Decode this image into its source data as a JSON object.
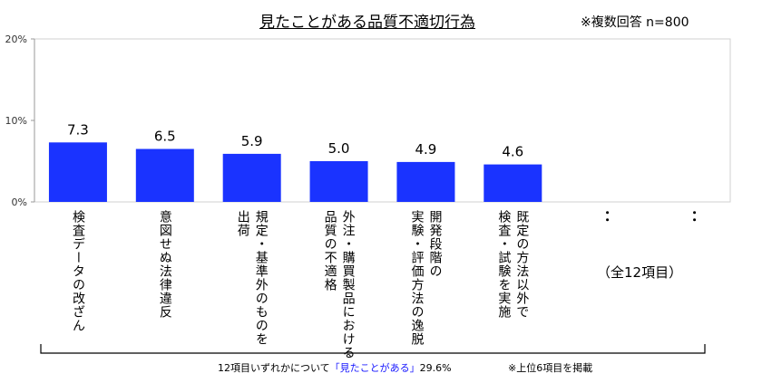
{
  "chart_data": {
    "type": "bar",
    "title": "見たことがある品質不適切行為",
    "note": "※複数回答 n=800",
    "categories": [
      "検査データの改ざん",
      "意図せぬ法律違反",
      "規定・基準外のものを\n出荷",
      "外注・購買製品における\n品質の不適格",
      "開発段階の\n実験・評価方法の逸脱",
      "既定の方法以外で\n検査・試験を実施"
    ],
    "values": [
      7.3,
      6.5,
      5.9,
      5.0,
      4.9,
      4.6
    ],
    "value_labels": [
      "7.3",
      "6.5",
      "5.9",
      "5.0",
      "4.9",
      "4.6"
    ],
    "ylim": [
      0,
      20
    ],
    "yticks": [
      "0%",
      "10%",
      "20%"
    ],
    "grid": false,
    "bar_color": "#1a33ff",
    "omitted_marker": "：",
    "omitted_label": "（全12項目）",
    "summary_prefix": "12項目いずれかについて",
    "summary_highlight": "「見たことがある」",
    "summary_value": "29.6%",
    "summary_highlight_color": "#1a1aff",
    "footnote": "※上位6項目を掲載"
  }
}
